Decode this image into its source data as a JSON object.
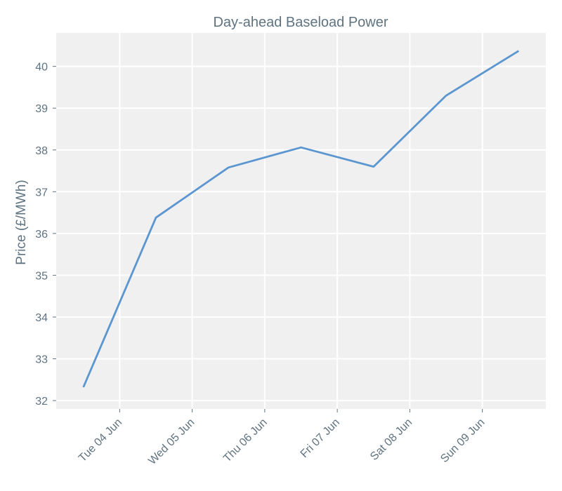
{
  "chart_data": {
    "type": "line",
    "title": "Day-ahead Baseload Power",
    "xlabel": "",
    "ylabel": "Price (£/MWh)",
    "x": [
      "2024-06-03 12:00",
      "2024-06-04 12:00",
      "2024-06-05 12:00",
      "2024-06-06 12:00",
      "2024-06-07 12:00",
      "2024-06-08 12:00",
      "2024-06-09 12:00"
    ],
    "xtick_labels": [
      "Tue 04 Jun",
      "Wed 05 Jun",
      "Thu 06 Jun",
      "Fri 07 Jun",
      "Sat 08 Jun",
      "Sun 09 Jun"
    ],
    "ylim": [
      31.8,
      40.8
    ],
    "yticks": [
      32,
      33,
      34,
      35,
      36,
      37,
      38,
      39,
      40
    ],
    "series": [
      {
        "values": [
          32.32,
          36.38,
          37.58,
          38.06,
          37.6,
          39.3,
          40.37
        ],
        "color": "#5b96d0"
      }
    ],
    "grid": true,
    "background": "#f0f0f0"
  }
}
